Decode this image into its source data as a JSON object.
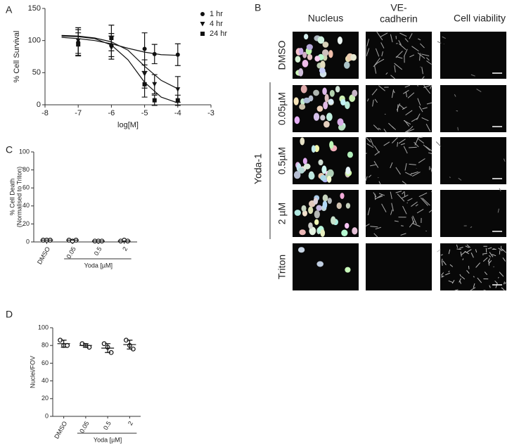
{
  "panel_labels": [
    "A",
    "B",
    "C",
    "D"
  ],
  "chart_data": [
    {
      "type": "line",
      "ylabel": "% Cell Survival",
      "xlabel": "log[M]",
      "xlim": [
        -8,
        -3
      ],
      "xticks": [
        -8,
        -7,
        -6,
        -5,
        -4,
        -3
      ],
      "ylim": [
        0,
        150
      ],
      "yticks": [
        0,
        50,
        100,
        150
      ],
      "legend": "top-right",
      "series": [
        {
          "name": "1 hr",
          "marker": "circle",
          "color": "#111",
          "x": [
            -7,
            -6,
            -5,
            -4.7,
            -4
          ],
          "values": [
            97,
            93,
            87,
            79,
            78
          ],
          "errors": [
            20,
            18,
            25,
            15,
            17
          ],
          "fit": {
            "x": [
              -7.5,
              -7,
              -6.5,
              -6,
              -5.5,
              -5,
              -4.5,
              -4
            ],
            "values": [
              105,
              103,
              100,
              95,
              88,
              82,
              78,
              77
            ]
          }
        },
        {
          "name": "4 hr",
          "marker": "triangle",
          "color": "#111",
          "x": [
            -7,
            -6,
            -5,
            -4.7,
            -4
          ],
          "values": [
            100,
            89,
            48,
            32,
            24
          ],
          "errors": [
            20,
            18,
            22,
            15,
            20
          ],
          "fit": {
            "x": [
              -7.5,
              -7,
              -6.5,
              -6,
              -5.5,
              -5,
              -4.5,
              -4
            ],
            "values": [
              108,
              107,
              104,
              98,
              85,
              60,
              38,
              25
            ]
          }
        },
        {
          "name": "24 hr",
          "marker": "square",
          "color": "#111",
          "x": [
            -7,
            -6,
            -5,
            -4.7,
            -4
          ],
          "values": [
            94,
            104,
            32,
            7,
            7
          ],
          "errors": [
            18,
            20,
            20,
            8,
            8
          ],
          "fit": {
            "x": [
              -7.5,
              -7,
              -6.5,
              -6,
              -5.5,
              -5,
              -4.5,
              -4
            ],
            "values": [
              107,
              106,
              103,
              93,
              70,
              35,
              12,
              3
            ]
          }
        }
      ]
    },
    {
      "type": "dot",
      "ylabel": "% Cell Death",
      "ylabel_sub": "(Normalised to Triton)",
      "group_label": "Yoda [µM]",
      "categories": [
        "DMSO",
        "0.05",
        "0.5",
        "2"
      ],
      "ylim": [
        0,
        100
      ],
      "yticks": [
        0,
        20,
        40,
        60,
        80,
        100
      ],
      "points": [
        [
          2,
          2,
          2
        ],
        [
          2,
          1,
          2
        ],
        [
          1,
          1,
          1
        ],
        [
          1,
          2,
          1
        ]
      ],
      "means": [
        2,
        2,
        1,
        1
      ]
    },
    {
      "type": "dot",
      "ylabel": "Nuclei/FOV",
      "group_label": "Yoda [µM]",
      "categories": [
        "DMSO",
        "0.05",
        "0.5",
        "2"
      ],
      "ylim": [
        0,
        100
      ],
      "yticks": [
        0,
        20,
        40,
        60,
        80,
        100
      ],
      "points": [
        [
          86,
          80,
          80
        ],
        [
          82,
          80,
          78
        ],
        [
          82,
          78,
          72
        ],
        [
          86,
          80,
          76
        ]
      ],
      "means": [
        82,
        80,
        77,
        81
      ],
      "sd": [
        4,
        2,
        5,
        5
      ]
    }
  ],
  "microscopy": {
    "columns": [
      "Nucleus",
      "VE-",
      "cadherin",
      "Cell viability"
    ],
    "rows": [
      "DMSO",
      "0.05µM",
      "0.5µM",
      "2 µM",
      "Triton"
    ],
    "group_label": "Yoda-1"
  }
}
